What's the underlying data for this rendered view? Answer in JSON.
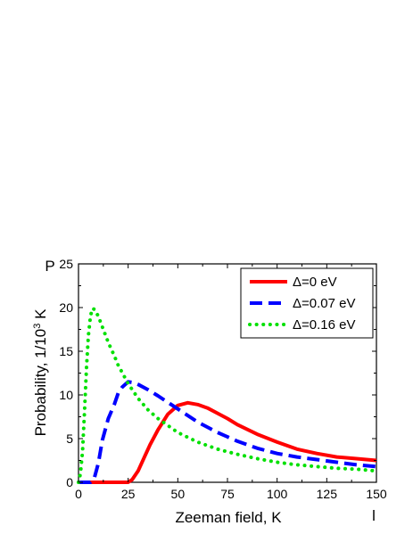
{
  "chart_data": {
    "type": "line",
    "xlabel": "Zeeman field, K",
    "ylabel_main": "Probability, 1/10",
    "ylabel_sup": "3",
    "ylabel_unit": " K",
    "corner_label_y": "P",
    "corner_label_x": "l",
    "xlim": [
      0,
      150
    ],
    "ylim": [
      0,
      25
    ],
    "xticks": [
      0,
      25,
      50,
      75,
      100,
      125,
      150
    ],
    "yticks": [
      0,
      5,
      10,
      15,
      20,
      25
    ],
    "legend_position": "top-right",
    "grid": false,
    "series": [
      {
        "name": "Δ=0 eV",
        "color": "#ff0000",
        "style": "solid",
        "x": [
          0,
          10,
          20,
          24,
          25,
          27,
          30,
          33,
          36,
          40,
          45,
          50,
          55,
          60,
          65,
          70,
          75,
          80,
          90,
          100,
          110,
          120,
          130,
          140,
          150
        ],
        "y": [
          0,
          0,
          0,
          0,
          0,
          0.3,
          1.3,
          2.8,
          4.3,
          6.0,
          7.8,
          8.8,
          9.1,
          8.9,
          8.5,
          7.9,
          7.3,
          6.6,
          5.5,
          4.6,
          3.8,
          3.3,
          2.9,
          2.7,
          2.5
        ]
      },
      {
        "name": "Δ=0.07 eV",
        "color": "#0000ff",
        "style": "dashed",
        "x": [
          0,
          4,
          6,
          8,
          10,
          12,
          15,
          18,
          20,
          22,
          25,
          28,
          30,
          35,
          40,
          50,
          60,
          70,
          80,
          90,
          100,
          110,
          120,
          130,
          140,
          150
        ],
        "y": [
          0,
          0,
          0,
          0.5,
          2.2,
          4.8,
          7.3,
          8.9,
          10.2,
          10.9,
          11.5,
          11.4,
          11.2,
          10.6,
          9.9,
          8.4,
          6.9,
          5.7,
          4.7,
          3.9,
          3.3,
          2.9,
          2.6,
          2.3,
          2.0,
          1.8
        ]
      },
      {
        "name": "Δ=0.16 eV",
        "color": "#00e000",
        "style": "dotted",
        "x": [
          0,
          1,
          2,
          3,
          4,
          5,
          6,
          7,
          8,
          10,
          12,
          15,
          18,
          20,
          25,
          30,
          35,
          40,
          50,
          60,
          70,
          80,
          90,
          100,
          110,
          120,
          130,
          140,
          150
        ],
        "y": [
          0,
          1.0,
          3.5,
          8.0,
          13.0,
          16.8,
          19.0,
          19.9,
          19.8,
          19.0,
          17.8,
          16.0,
          14.5,
          13.4,
          11.3,
          9.6,
          8.3,
          7.3,
          5.7,
          4.6,
          3.8,
          3.2,
          2.7,
          2.3,
          2.0,
          1.8,
          1.6,
          1.5,
          1.3
        ]
      }
    ]
  }
}
